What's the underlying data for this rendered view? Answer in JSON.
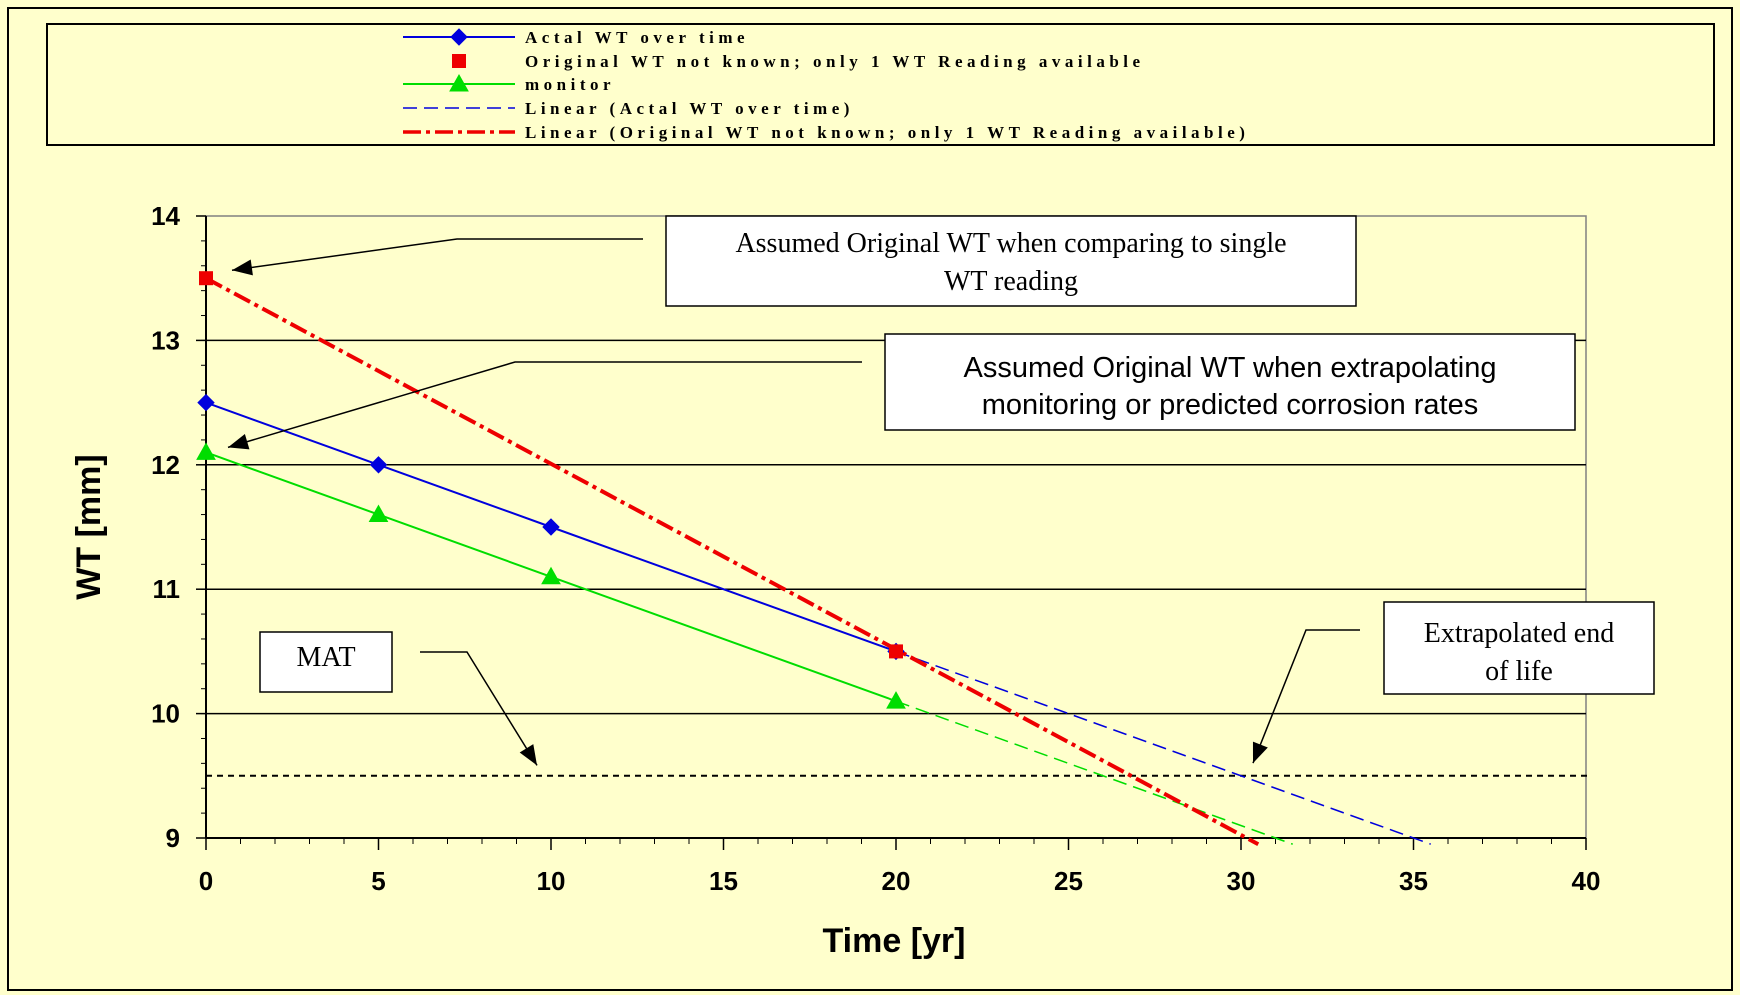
{
  "chart_data": {
    "type": "line",
    "xlabel": "Time [yr]",
    "ylabel": "WT [mm]",
    "xlim": [
      0,
      40
    ],
    "ylim": [
      9,
      14
    ],
    "xticks": [
      "0",
      "5",
      "10",
      "15",
      "20",
      "25",
      "30",
      "35",
      "40"
    ],
    "yticks": [
      "9",
      "10",
      "11",
      "12",
      "13",
      "14"
    ],
    "grid": "horizontal major lines",
    "legend_position": "top",
    "series": [
      {
        "name": "Actal WT over time",
        "color": "#0000DD",
        "marker": "diamond",
        "x": [
          0,
          5,
          10,
          20
        ],
        "y": [
          12.5,
          12.0,
          11.5,
          10.5
        ]
      },
      {
        "name": "Original WT not known; only 1 WT Reading available",
        "color": "#EE0000",
        "marker": "square",
        "x": [
          0,
          20
        ],
        "y": [
          13.5,
          10.5
        ]
      },
      {
        "name": "monitor",
        "color": "#00DD00",
        "marker": "triangle",
        "x": [
          0,
          5,
          10,
          20
        ],
        "y": [
          12.1,
          11.6,
          11.1,
          10.1
        ]
      },
      {
        "name": "Linear (Actal WT over time)",
        "color": "#0000DD",
        "style": "dashed",
        "x": [
          20,
          35.5
        ],
        "y": [
          10.5,
          8.95
        ]
      },
      {
        "name": "Linear (Original WT not known; only 1 WT Reading available)",
        "color": "#EE0000",
        "style": "dash-dot",
        "x": [
          0,
          30.5
        ],
        "y": [
          13.5,
          8.95
        ]
      }
    ],
    "extrapolations": [
      {
        "color": "#00DD00",
        "style": "dashed",
        "x": [
          20,
          31.5
        ],
        "y": [
          10.1,
          8.95
        ]
      }
    ],
    "reference_lines": [
      {
        "y": 9.5,
        "style": "dotted",
        "color": "#000000"
      }
    ],
    "annotations": {
      "orig_single": {
        "lines": [
          "Assumed Original WT when comparing to single",
          "WT reading"
        ],
        "target": [
          0,
          13.5
        ]
      },
      "orig_extrap": {
        "lines": [
          "Assumed Original WT when extrapolating",
          "monitoring or predicted corrosion rates"
        ],
        "target": [
          0,
          12.1
        ]
      },
      "mat": {
        "lines": [
          "MAT"
        ],
        "target": [
          9.5,
          9.6
        ]
      },
      "end_of_life": {
        "lines": [
          "Extrapolated end",
          "of life"
        ],
        "target": [
          30.5,
          9.65
        ]
      }
    }
  }
}
